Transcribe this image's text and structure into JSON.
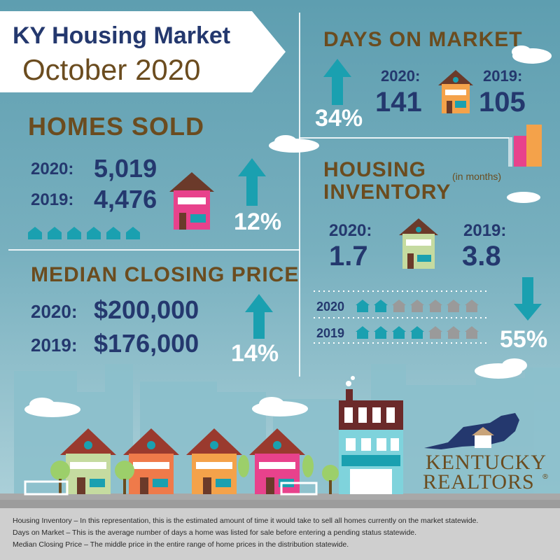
{
  "title": {
    "line1": "KY Housing Market",
    "line2": "October 2020"
  },
  "days_on_market": {
    "heading": "DAYS ON MARKET",
    "y2020_label": "2020:",
    "y2020_value": "141",
    "y2019_label": "2019:",
    "y2019_value": "105",
    "change": "34%",
    "direction": "up"
  },
  "homes_sold": {
    "heading": "HOMES SOLD",
    "y2020_label": "2020:",
    "y2020_value": "5,019",
    "y2019_label": "2019:",
    "y2019_value": "4,476",
    "change": "12%",
    "direction": "up"
  },
  "housing_inventory": {
    "heading_line1": "HOUSING",
    "heading_line2": "INVENTORY",
    "unit": "(in months)",
    "y2020_label": "2020:",
    "y2020_value": "1.7",
    "y2019_label": "2019:",
    "y2019_value": "3.8",
    "change": "55%",
    "direction": "down",
    "pictogram": {
      "row2020_label": "2020",
      "row2020_filled": 2,
      "row2019_label": "2019",
      "row2019_filled": 4,
      "total": 7
    }
  },
  "median_price": {
    "heading": "MEDIAN CLOSING PRICE",
    "y2020_label": "2020:",
    "y2020_value": "$200,000",
    "y2019_label": "2019:",
    "y2019_value": "$176,000",
    "change": "14%",
    "direction": "up"
  },
  "logo": {
    "line1": "KENTUCKY",
    "line2": "REALTORS",
    "mark": "®"
  },
  "footer": [
    "Housing Inventory – In this representation, this is the estimated amount of time it would take to sell all homes currently on the market statewide.",
    "Days on Market – This is the average number of days a home was listed for sale before entering a pending status statewide.",
    "Median Closing Price – The middle price in the entire range of home prices in the distribution statewide."
  ],
  "colors": {
    "navy": "#24386e",
    "brown": "#6b4c1f",
    "teal": "#1aa0b0",
    "pink": "#e8428c",
    "orange": "#f08a3c",
    "green_house": "#c5dba0",
    "gray_house": "#9a9a9a"
  }
}
